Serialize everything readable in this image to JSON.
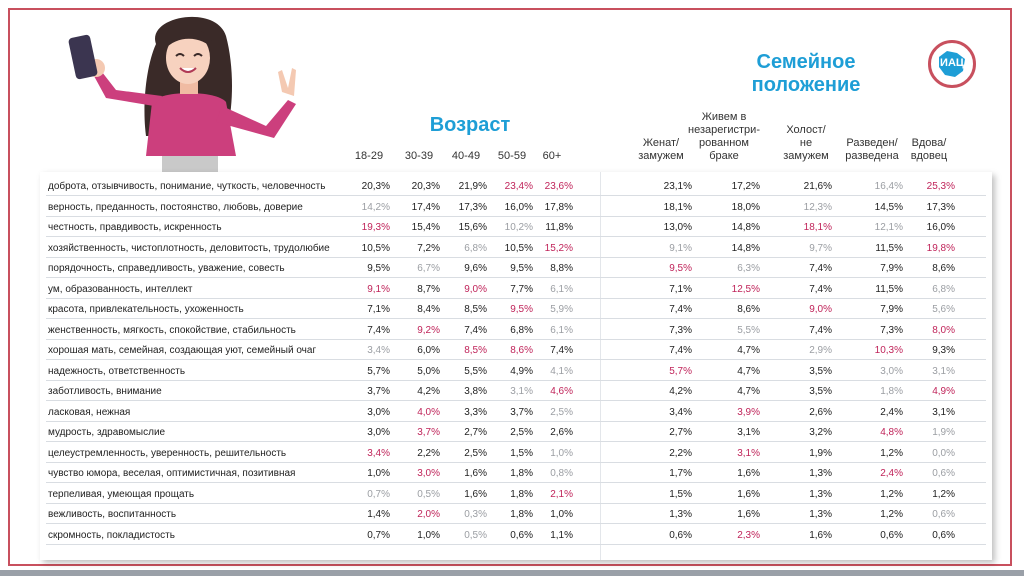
{
  "titles": {
    "age": "Возраст",
    "family_line1": "Семейное",
    "family_line2": "положение"
  },
  "logo_text": "ИАЦ",
  "columns": [
    {
      "lines": [
        "18-29"
      ]
    },
    {
      "lines": [
        "30-39"
      ]
    },
    {
      "lines": [
        "40-49"
      ]
    },
    {
      "lines": [
        "50-59"
      ]
    },
    {
      "lines": [
        "60+"
      ]
    },
    {
      "lines": [
        "Женат/",
        "замужем"
      ]
    },
    {
      "lines": [
        "Живем в",
        "незарегистри-",
        "рованном",
        "браке"
      ]
    },
    {
      "lines": [
        "Холост/",
        "не",
        "замужем"
      ]
    },
    {
      "lines": [
        "Разведен/",
        "разведена"
      ]
    },
    {
      "lines": [
        "Вдова/",
        "вдовец"
      ]
    }
  ],
  "rows": [
    {
      "label": "доброта, отзывчивость, понимание, чуткость, человечность",
      "values": [
        "20,3%",
        "20,3%",
        "21,9%",
        "23,4%",
        "23,6%",
        "23,1%",
        "17,2%",
        "21,6%",
        "16,4%",
        "25,3%"
      ],
      "styles": [
        "n",
        "n",
        "n",
        "h",
        "h",
        "n",
        "n",
        "n",
        "l",
        "h"
      ]
    },
    {
      "label": "верность, преданность, постоянство, любовь, доверие",
      "values": [
        "14,2%",
        "17,4%",
        "17,3%",
        "16,0%",
        "17,8%",
        "18,1%",
        "18,0%",
        "12,3%",
        "14,5%",
        "17,3%"
      ],
      "styles": [
        "l",
        "n",
        "n",
        "n",
        "n",
        "n",
        "n",
        "l",
        "n",
        "n"
      ]
    },
    {
      "label": "честность, правдивость, искренность",
      "values": [
        "19,3%",
        "15,4%",
        "15,6%",
        "10,2%",
        "11,8%",
        "13,0%",
        "14,8%",
        "18,1%",
        "12,1%",
        "16,0%"
      ],
      "styles": [
        "h",
        "n",
        "n",
        "l",
        "n",
        "n",
        "n",
        "h",
        "l",
        "n"
      ]
    },
    {
      "label": "хозяйственность, чистоплотность, деловитость, трудолюбие",
      "values": [
        "10,5%",
        "7,2%",
        "6,8%",
        "10,5%",
        "15,2%",
        "9,1%",
        "14,8%",
        "9,7%",
        "11,5%",
        "19,8%"
      ],
      "styles": [
        "n",
        "n",
        "l",
        "n",
        "h",
        "l",
        "n",
        "l",
        "n",
        "h"
      ]
    },
    {
      "label": "порядочность, справедливость, уважение, совесть",
      "values": [
        "9,5%",
        "6,7%",
        "9,6%",
        "9,5%",
        "8,8%",
        "9,5%",
        "6,3%",
        "7,4%",
        "7,9%",
        "8,6%"
      ],
      "styles": [
        "n",
        "l",
        "n",
        "n",
        "n",
        "h",
        "l",
        "n",
        "n",
        "n"
      ]
    },
    {
      "label": "ум, образованность, интеллект",
      "values": [
        "9,1%",
        "8,7%",
        "9,0%",
        "7,7%",
        "6,1%",
        "7,1%",
        "12,5%",
        "7,4%",
        "11,5%",
        "6,8%"
      ],
      "styles": [
        "h",
        "n",
        "h",
        "n",
        "l",
        "n",
        "h",
        "n",
        "n",
        "l"
      ]
    },
    {
      "label": "красота, привлекательность, ухоженность",
      "values": [
        "7,1%",
        "8,4%",
        "8,5%",
        "9,5%",
        "5,9%",
        "7,4%",
        "8,6%",
        "9,0%",
        "7,9%",
        "5,6%"
      ],
      "styles": [
        "n",
        "n",
        "n",
        "h",
        "l",
        "n",
        "n",
        "h",
        "n",
        "l"
      ]
    },
    {
      "label": "женственность, мягкость, спокойствие, стабильность",
      "values": [
        "7,4%",
        "9,2%",
        "7,4%",
        "6,8%",
        "6,1%",
        "7,3%",
        "5,5%",
        "7,4%",
        "7,3%",
        "8,0%"
      ],
      "styles": [
        "n",
        "h",
        "n",
        "n",
        "l",
        "n",
        "l",
        "n",
        "n",
        "h"
      ]
    },
    {
      "label": "хорошая мать, семейная, создающая уют, семейный очаг",
      "values": [
        "3,4%",
        "6,0%",
        "8,5%",
        "8,6%",
        "7,4%",
        "7,4%",
        "4,7%",
        "2,9%",
        "10,3%",
        "9,3%"
      ],
      "styles": [
        "l",
        "n",
        "h",
        "h",
        "n",
        "n",
        "n",
        "l",
        "h",
        "n"
      ]
    },
    {
      "label": "надежность, ответственность",
      "values": [
        "5,7%",
        "5,0%",
        "5,5%",
        "4,9%",
        "4,1%",
        "5,7%",
        "4,7%",
        "3,5%",
        "3,0%",
        "3,1%"
      ],
      "styles": [
        "n",
        "n",
        "n",
        "n",
        "l",
        "h",
        "n",
        "n",
        "l",
        "l"
      ]
    },
    {
      "label": "заботливость, внимание",
      "values": [
        "3,7%",
        "4,2%",
        "3,8%",
        "3,1%",
        "4,6%",
        "4,2%",
        "4,7%",
        "3,5%",
        "1,8%",
        "4,9%"
      ],
      "styles": [
        "n",
        "n",
        "n",
        "l",
        "h",
        "n",
        "n",
        "n",
        "l",
        "h"
      ]
    },
    {
      "label": "ласковая, нежная",
      "values": [
        "3,0%",
        "4,0%",
        "3,3%",
        "3,7%",
        "2,5%",
        "3,4%",
        "3,9%",
        "2,6%",
        "2,4%",
        "3,1%"
      ],
      "styles": [
        "n",
        "h",
        "n",
        "n",
        "l",
        "n",
        "h",
        "n",
        "n",
        "n"
      ]
    },
    {
      "label": "мудрость, здравомыслие",
      "values": [
        "3,0%",
        "3,7%",
        "2,7%",
        "2,5%",
        "2,6%",
        "2,7%",
        "3,1%",
        "3,2%",
        "4,8%",
        "1,9%"
      ],
      "styles": [
        "n",
        "h",
        "n",
        "n",
        "n",
        "n",
        "n",
        "n",
        "h",
        "l"
      ]
    },
    {
      "label": "целеустремленность, уверенность, решительность",
      "values": [
        "3,4%",
        "2,2%",
        "2,5%",
        "1,5%",
        "1,0%",
        "2,2%",
        "3,1%",
        "1,9%",
        "1,2%",
        "0,0%"
      ],
      "styles": [
        "h",
        "n",
        "n",
        "n",
        "l",
        "n",
        "h",
        "n",
        "n",
        "l"
      ]
    },
    {
      "label": "чувство юмора, веселая, оптимистичная, позитивная",
      "values": [
        "1,0%",
        "3,0%",
        "1,6%",
        "1,8%",
        "0,8%",
        "1,7%",
        "1,6%",
        "1,3%",
        "2,4%",
        "0,6%"
      ],
      "styles": [
        "n",
        "h",
        "n",
        "n",
        "l",
        "n",
        "n",
        "n",
        "h",
        "l"
      ]
    },
    {
      "label": "терпеливая, умеющая прощать",
      "values": [
        "0,7%",
        "0,5%",
        "1,6%",
        "1,8%",
        "2,1%",
        "1,5%",
        "1,6%",
        "1,3%",
        "1,2%",
        "1,2%"
      ],
      "styles": [
        "l",
        "l",
        "n",
        "n",
        "h",
        "n",
        "n",
        "n",
        "n",
        "n"
      ]
    },
    {
      "label": "вежливость, воспитанность",
      "values": [
        "1,4%",
        "2,0%",
        "0,3%",
        "1,8%",
        "1,0%",
        "1,3%",
        "1,6%",
        "1,3%",
        "1,2%",
        "0,6%"
      ],
      "styles": [
        "n",
        "h",
        "l",
        "n",
        "n",
        "n",
        "n",
        "n",
        "n",
        "l"
      ]
    },
    {
      "label": "скромность, покладистость",
      "values": [
        "0,7%",
        "1,0%",
        "0,5%",
        "0,6%",
        "1,1%",
        "0,6%",
        "2,3%",
        "1,6%",
        "0,6%",
        "0,6%"
      ],
      "styles": [
        "n",
        "n",
        "l",
        "n",
        "n",
        "n",
        "h",
        "n",
        "n",
        "n"
      ]
    }
  ],
  "colors": {
    "title_blue": "#1e9ed6",
    "highlight": "#c0245a",
    "muted": "#9b9ea3",
    "frame": "#c8505e"
  }
}
